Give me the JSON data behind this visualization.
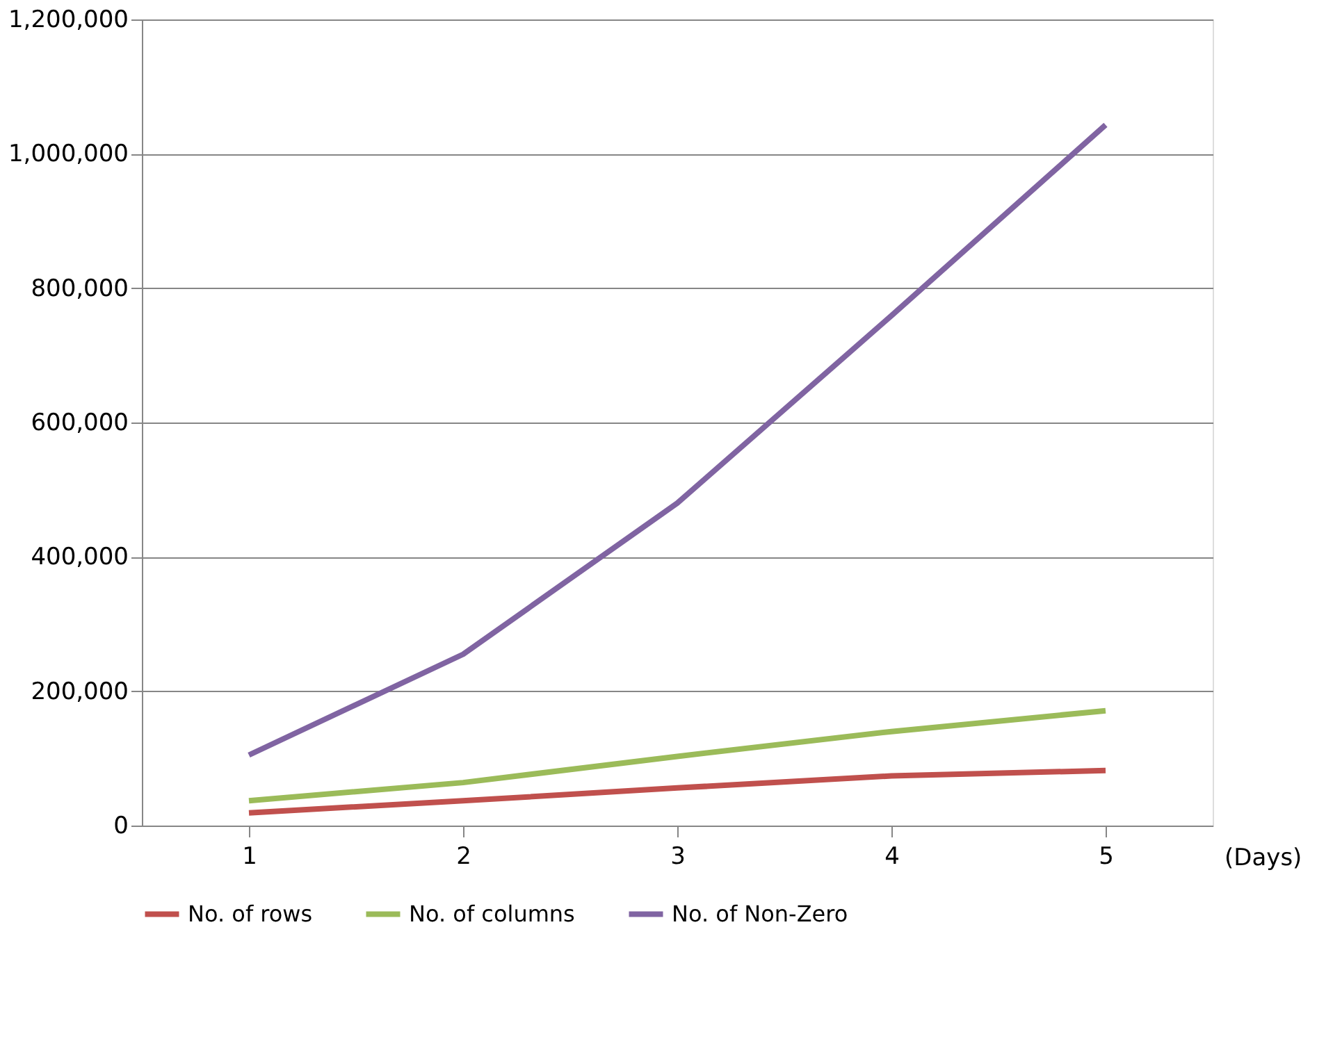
{
  "chart_data": {
    "type": "line",
    "xlabel": "(Days)",
    "categories": [
      "1",
      "2",
      "3",
      "4",
      "5"
    ],
    "series": [
      {
        "name": "No. of rows",
        "color": "#c0504d",
        "values": [
          19000,
          37000,
          56000,
          74000,
          82000
        ]
      },
      {
        "name": "No. of columns",
        "color": "#9bbb59",
        "values": [
          37000,
          64000,
          103000,
          140000,
          171000
        ]
      },
      {
        "name": "No. of Non-Zero",
        "color": "#8064a2",
        "values": [
          105000,
          255000,
          480000,
          759000,
          1043000
        ]
      }
    ],
    "ylim": [
      0,
      1200000
    ],
    "yticks": [
      0,
      {
        "value": 200000,
        "label": "200,000"
      },
      {
        "value": 400000,
        "label": "400,000"
      },
      {
        "value": 600000,
        "label": "600,000"
      },
      {
        "value": 800000,
        "label": "800,000"
      },
      {
        "value": 1000000,
        "label": "1,000,000"
      },
      {
        "value": 1200000,
        "label": "1,200,000"
      }
    ],
    "grid": "y",
    "legend": "bottom",
    "marker": "none",
    "line_style": "solid"
  }
}
